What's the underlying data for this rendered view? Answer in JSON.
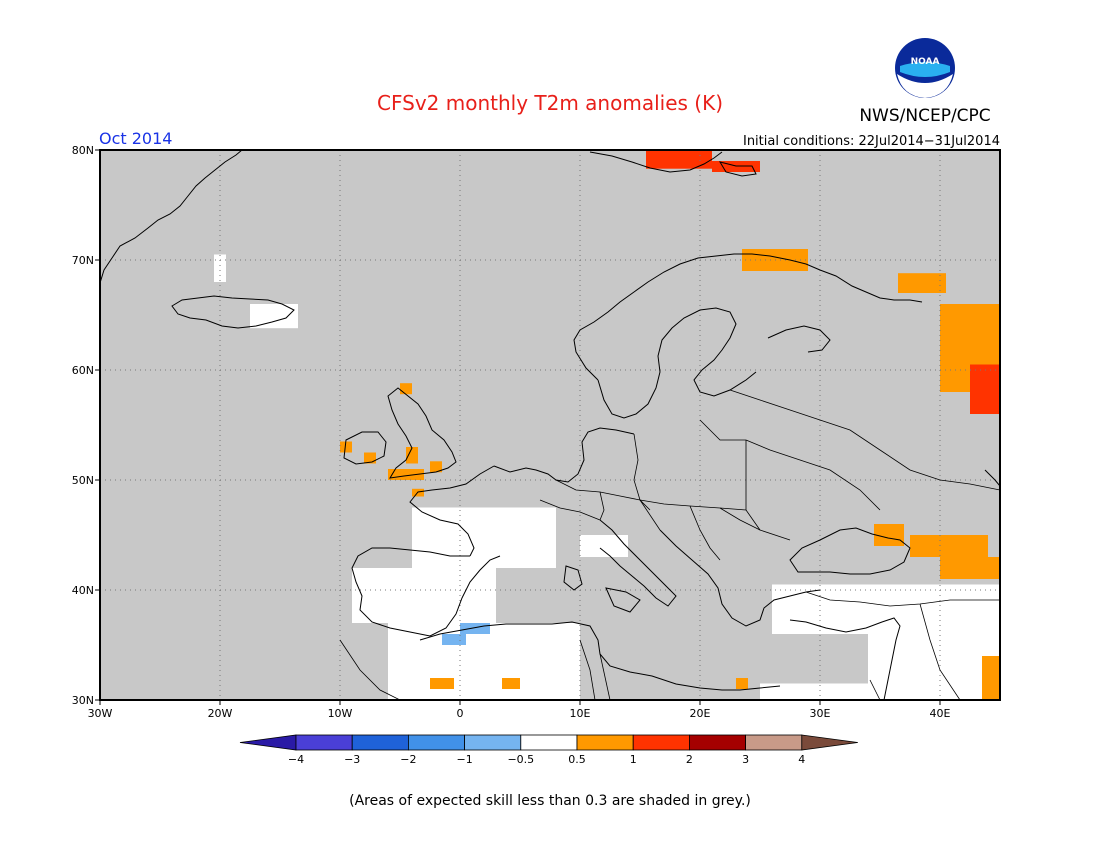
{
  "header": {
    "title": "CFSv2 monthly T2m anomalies (K)",
    "title_color": "#e8201a",
    "month": "Oct 2014",
    "month_color": "#1a33e6",
    "agency": "NWS/NCEP/CPC",
    "logo_text": "NOAA",
    "initial_conditions": "Initial conditions: 22Jul2014−31Jul2014"
  },
  "map": {
    "lon_range": [
      -30,
      45
    ],
    "lat_range": [
      30,
      80
    ],
    "lon_ticks": [
      {
        "value": -30,
        "label": "30W"
      },
      {
        "value": -20,
        "label": "20W"
      },
      {
        "value": -10,
        "label": "10W"
      },
      {
        "value": 0,
        "label": "0"
      },
      {
        "value": 10,
        "label": "10E"
      },
      {
        "value": 20,
        "label": "20E"
      },
      {
        "value": 30,
        "label": "30E"
      },
      {
        "value": 40,
        "label": "40E"
      }
    ],
    "lat_ticks": [
      {
        "value": 30,
        "label": "30N"
      },
      {
        "value": 40,
        "label": "40N"
      },
      {
        "value": 50,
        "label": "50N"
      },
      {
        "value": 60,
        "label": "60N"
      },
      {
        "value": 70,
        "label": "70N"
      },
      {
        "value": 80,
        "label": "80N"
      }
    ],
    "grid": true,
    "colors": {
      "skill_low": "#c8c8c8",
      "near_zero": "#ffffff",
      "pos_0_5_1": "#ff9900",
      "pos_1_2": "#ff3300",
      "pos_2_3": "#a50000",
      "neg_1_0_5": "#75b4f0",
      "neg_2_1": "#4191e8",
      "coast": "#000000"
    },
    "white_regions": [
      {
        "lon": [
          -20.5,
          -19.5
        ],
        "lat": [
          68,
          70.5
        ]
      },
      {
        "lon": [
          -17.5,
          -13.5
        ],
        "lat": [
          63.8,
          66
        ]
      },
      {
        "lon": [
          -4,
          8
        ],
        "lat": [
          42,
          47.5
        ]
      },
      {
        "lon": [
          -9,
          3
        ],
        "lat": [
          37,
          42
        ]
      },
      {
        "lon": [
          -6,
          10
        ],
        "lat": [
          30,
          37
        ]
      },
      {
        "lon": [
          10,
          14
        ],
        "lat": [
          43,
          45
        ]
      },
      {
        "lon": [
          26,
          45
        ],
        "lat": [
          36,
          40.5
        ]
      },
      {
        "lon": [
          34,
          45
        ],
        "lat": [
          30,
          36
        ]
      },
      {
        "lon": [
          25,
          34
        ],
        "lat": [
          30,
          31.5
        ]
      }
    ],
    "orange_regions": [
      {
        "lon": [
          -5,
          -4
        ],
        "lat": [
          57.8,
          58.8
        ]
      },
      {
        "lon": [
          -10,
          -9
        ],
        "lat": [
          52.5,
          53.5
        ]
      },
      {
        "lon": [
          -8,
          -7
        ],
        "lat": [
          51.5,
          52.5
        ]
      },
      {
        "lon": [
          -4.5,
          -3.5
        ],
        "lat": [
          51.5,
          53
        ]
      },
      {
        "lon": [
          -6,
          -3
        ],
        "lat": [
          50,
          51
        ]
      },
      {
        "lon": [
          -2.5,
          -1.5
        ],
        "lat": [
          50.7,
          51.7
        ]
      },
      {
        "lon": [
          -4,
          -3
        ],
        "lat": [
          48.5,
          49.2
        ]
      },
      {
        "lon": [
          23.5,
          29
        ],
        "lat": [
          69,
          71
        ]
      },
      {
        "lon": [
          36.5,
          40.5
        ],
        "lat": [
          67,
          68.8
        ]
      },
      {
        "lon": [
          40,
          45
        ],
        "lat": [
          58,
          66
        ]
      },
      {
        "lon": [
          34.5,
          37
        ],
        "lat": [
          44,
          46
        ]
      },
      {
        "lon": [
          37.5,
          44
        ],
        "lat": [
          43,
          45
        ]
      },
      {
        "lon": [
          40,
          45
        ],
        "lat": [
          41,
          43
        ]
      },
      {
        "lon": [
          -2.5,
          -0.5
        ],
        "lat": [
          31,
          32
        ]
      },
      {
        "lon": [
          3.5,
          5
        ],
        "lat": [
          31,
          32
        ]
      },
      {
        "lon": [
          23,
          24
        ],
        "lat": [
          31,
          32
        ]
      },
      {
        "lon": [
          43.5,
          45
        ],
        "lat": [
          30,
          34
        ]
      }
    ],
    "red_regions": [
      {
        "lon": [
          15.5,
          21
        ],
        "lat": [
          78.3,
          80
        ]
      },
      {
        "lon": [
          21,
          25
        ],
        "lat": [
          78,
          79
        ]
      },
      {
        "lon": [
          42.5,
          45
        ],
        "lat": [
          56,
          60.5
        ]
      }
    ],
    "blue_regions": [
      {
        "lon": [
          -1.5,
          0.5
        ],
        "lat": [
          35,
          36
        ]
      },
      {
        "lon": [
          0,
          2.5
        ],
        "lat": [
          36,
          37
        ]
      }
    ]
  },
  "colorbar": {
    "labels": [
      "−4",
      "−3",
      "−2",
      "−1",
      "−0.5",
      "0.5",
      "1",
      "2",
      "3",
      "4"
    ],
    "colors": [
      "#2a1aa6",
      "#4a3fd6",
      "#1f62d9",
      "#4191e8",
      "#75b4f0",
      "#ffffff",
      "#ff9900",
      "#ff3300",
      "#a50000",
      "#c89a88",
      "#7a4a3a"
    ]
  },
  "footnote": "(Areas of expected skill less than 0.3 are shaded in grey.)"
}
